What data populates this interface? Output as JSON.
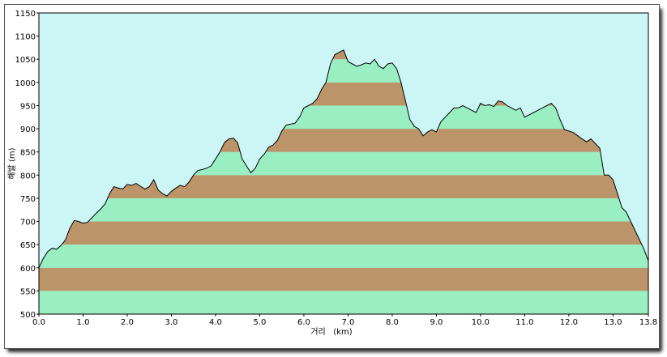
{
  "chart_data": {
    "type": "area",
    "xlabel": "거리   (km)",
    "ylabel": "해발 (m)",
    "xlim": [
      0,
      13.8
    ],
    "ylim": [
      500,
      1150
    ],
    "x_ticks": [
      0,
      1,
      2,
      3,
      4,
      5,
      6,
      7,
      8,
      9,
      10,
      11,
      12,
      13,
      13.8
    ],
    "x_tick_labels": [
      "0.0",
      "1.0",
      "2.0",
      "3.0",
      "4.0",
      "5.0",
      "6.0",
      "7.0",
      "8.0",
      "9.0",
      "10.0",
      "11.0",
      "12.0",
      "13.0",
      "13.8"
    ],
    "y_ticks": [
      500,
      550,
      600,
      650,
      700,
      750,
      800,
      850,
      900,
      950,
      1000,
      1050,
      1100,
      1150
    ],
    "y_tick_labels": [
      "500",
      "550",
      "600",
      "650",
      "700",
      "750",
      "800",
      "850",
      "900",
      "950",
      "1000",
      "1050",
      "1100",
      "1150"
    ],
    "grid": false,
    "colors": {
      "sky": "#ccf6f6",
      "band_green": "#99efc1",
      "band_brown": "#bb946a",
      "profile_line": "#000000"
    },
    "band_pattern": "alternating 50 m bands starting with green at 500 m",
    "x": [
      0.0,
      0.1,
      0.2,
      0.3,
      0.4,
      0.5,
      0.6,
      0.7,
      0.8,
      0.9,
      1.0,
      1.1,
      1.2,
      1.3,
      1.4,
      1.5,
      1.6,
      1.7,
      1.8,
      1.9,
      2.0,
      2.1,
      2.2,
      2.3,
      2.4,
      2.5,
      2.6,
      2.7,
      2.8,
      2.9,
      3.0,
      3.1,
      3.2,
      3.3,
      3.4,
      3.5,
      3.6,
      3.7,
      3.8,
      3.9,
      4.0,
      4.1,
      4.2,
      4.3,
      4.4,
      4.5,
      4.6,
      4.7,
      4.8,
      4.9,
      5.0,
      5.1,
      5.2,
      5.3,
      5.4,
      5.5,
      5.6,
      5.7,
      5.8,
      5.9,
      6.0,
      6.1,
      6.2,
      6.3,
      6.4,
      6.5,
      6.6,
      6.7,
      6.8,
      6.9,
      7.0,
      7.1,
      7.2,
      7.3,
      7.4,
      7.5,
      7.6,
      7.7,
      7.8,
      7.9,
      8.0,
      8.1,
      8.2,
      8.3,
      8.4,
      8.5,
      8.6,
      8.7,
      8.8,
      8.9,
      9.0,
      9.1,
      9.2,
      9.3,
      9.4,
      9.5,
      9.6,
      9.7,
      9.8,
      9.9,
      10.0,
      10.1,
      10.2,
      10.3,
      10.4,
      10.5,
      10.6,
      10.7,
      10.8,
      10.9,
      11.0,
      11.1,
      11.2,
      11.3,
      11.4,
      11.5,
      11.6,
      11.7,
      11.8,
      11.9,
      12.0,
      12.1,
      12.2,
      12.3,
      12.4,
      12.5,
      12.6,
      12.7,
      12.8,
      12.9,
      13.0,
      13.1,
      13.2,
      13.3,
      13.4,
      13.5,
      13.6,
      13.7,
      13.8
    ],
    "y": [
      600,
      620,
      635,
      642,
      640,
      648,
      660,
      685,
      702,
      700,
      696,
      698,
      708,
      718,
      727,
      738,
      760,
      775,
      772,
      770,
      780,
      778,
      782,
      776,
      770,
      775,
      790,
      768,
      760,
      755,
      765,
      772,
      778,
      775,
      785,
      800,
      810,
      812,
      815,
      820,
      835,
      850,
      870,
      878,
      880,
      870,
      835,
      820,
      805,
      815,
      835,
      845,
      860,
      865,
      875,
      895,
      908,
      910,
      912,
      925,
      945,
      950,
      955,
      965,
      985,
      1000,
      1040,
      1060,
      1065,
      1070,
      1045,
      1040,
      1035,
      1038,
      1042,
      1040,
      1050,
      1035,
      1030,
      1040,
      1042,
      1030,
      1000,
      960,
      920,
      905,
      900,
      885,
      893,
      898,
      893,
      915,
      925,
      935,
      945,
      945,
      950,
      945,
      940,
      935,
      955,
      950,
      952,
      948,
      960,
      958,
      950,
      945,
      940,
      945,
      925,
      930,
      935,
      940,
      945,
      950,
      955,
      945,
      920,
      898,
      895,
      892,
      885,
      878,
      872,
      878,
      868,
      858,
      800,
      800,
      790,
      760,
      730,
      720,
      700,
      680,
      660,
      640,
      615
    ],
    "total_distance_km": 13.8
  }
}
